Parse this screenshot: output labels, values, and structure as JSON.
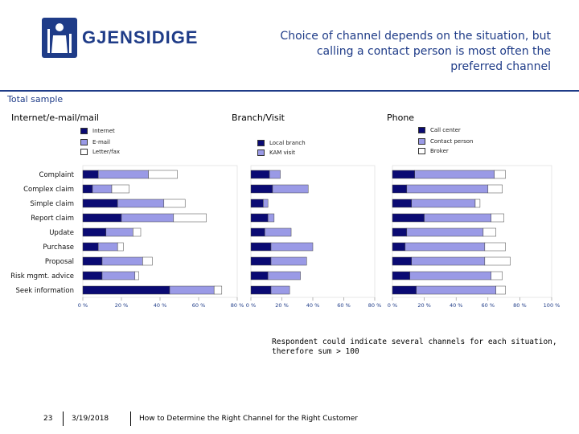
{
  "header": {
    "logo_text": "GJENSIDIGE",
    "headline_line1": "Choice of channel depends on the situation, but",
    "headline_line2": "calling a contact person is most often the",
    "headline_line3": "preferred channel",
    "total_sample": "Total sample"
  },
  "colors": {
    "brand": "#1f3c88",
    "series1": "#0a0a73",
    "series2": "#9a9ae6",
    "series3": "#ffffff"
  },
  "footer": {
    "page": "23",
    "date": "3/19/2018",
    "title": "How to Determine the Right Channel for the Right Customer"
  },
  "note": {
    "line1": "Respondent could indicate several channels for each situation,",
    "line2": "therefore sum > 100"
  },
  "chart_data": [
    {
      "type": "bar",
      "orientation": "horizontal-stacked",
      "title": "Internet/e-mail/mail",
      "categories": [
        "Complaint",
        "Complex claim",
        "Simple claim",
        "Report claim",
        "Update",
        "Purchase",
        "Proposal",
        "Risk mgmt. advice",
        "Seek information"
      ],
      "series": [
        {
          "name": "Internet",
          "values": [
            8,
            5,
            18,
            20,
            12,
            8,
            10,
            10,
            45
          ]
        },
        {
          "name": "E-mail",
          "values": [
            26,
            10,
            24,
            27,
            14,
            10,
            21,
            17,
            23
          ]
        },
        {
          "name": "Letter/fax",
          "values": [
            15,
            9,
            11,
            17,
            4,
            3,
            5,
            2,
            4
          ]
        }
      ],
      "xlim": [
        0,
        80
      ],
      "xticks": [
        "0 %",
        "20 %",
        "40 %",
        "60 %",
        "80 %"
      ]
    },
    {
      "type": "bar",
      "orientation": "horizontal-stacked",
      "title": "Branch/Visit",
      "categories": [
        "Complaint",
        "Complex claim",
        "Simple claim",
        "Report claim",
        "Update",
        "Purchase",
        "Proposal",
        "Risk mgmt. advice",
        "Seek information"
      ],
      "series": [
        {
          "name": "Local branch",
          "values": [
            12,
            14,
            8,
            11,
            9,
            13,
            13,
            11,
            13
          ]
        },
        {
          "name": "KAM visit",
          "values": [
            7,
            23,
            3,
            4,
            17,
            27,
            23,
            21,
            12
          ]
        }
      ],
      "xlim": [
        0,
        80
      ],
      "xticks": [
        "0 %",
        "20 %",
        "40 %",
        "60 %",
        "80 %"
      ]
    },
    {
      "type": "bar",
      "orientation": "horizontal-stacked",
      "title": "Phone",
      "categories": [
        "Complaint",
        "Complex claim",
        "Simple claim",
        "Report claim",
        "Update",
        "Purchase",
        "Proposal",
        "Risk mgmt. advice",
        "Seek information"
      ],
      "series": [
        {
          "name": "Call center",
          "values": [
            14,
            9,
            12,
            20,
            9,
            8,
            12,
            11,
            15
          ]
        },
        {
          "name": "Contact person",
          "values": [
            50,
            51,
            40,
            42,
            48,
            50,
            46,
            51,
            50
          ]
        },
        {
          "name": "Broker",
          "values": [
            7,
            9,
            3,
            8,
            8,
            13,
            16,
            7,
            6
          ]
        }
      ],
      "xlim": [
        0,
        100
      ],
      "xticks": [
        "0 %",
        "20 %",
        "40 %",
        "60 %",
        "80 %",
        "100 %"
      ]
    }
  ]
}
